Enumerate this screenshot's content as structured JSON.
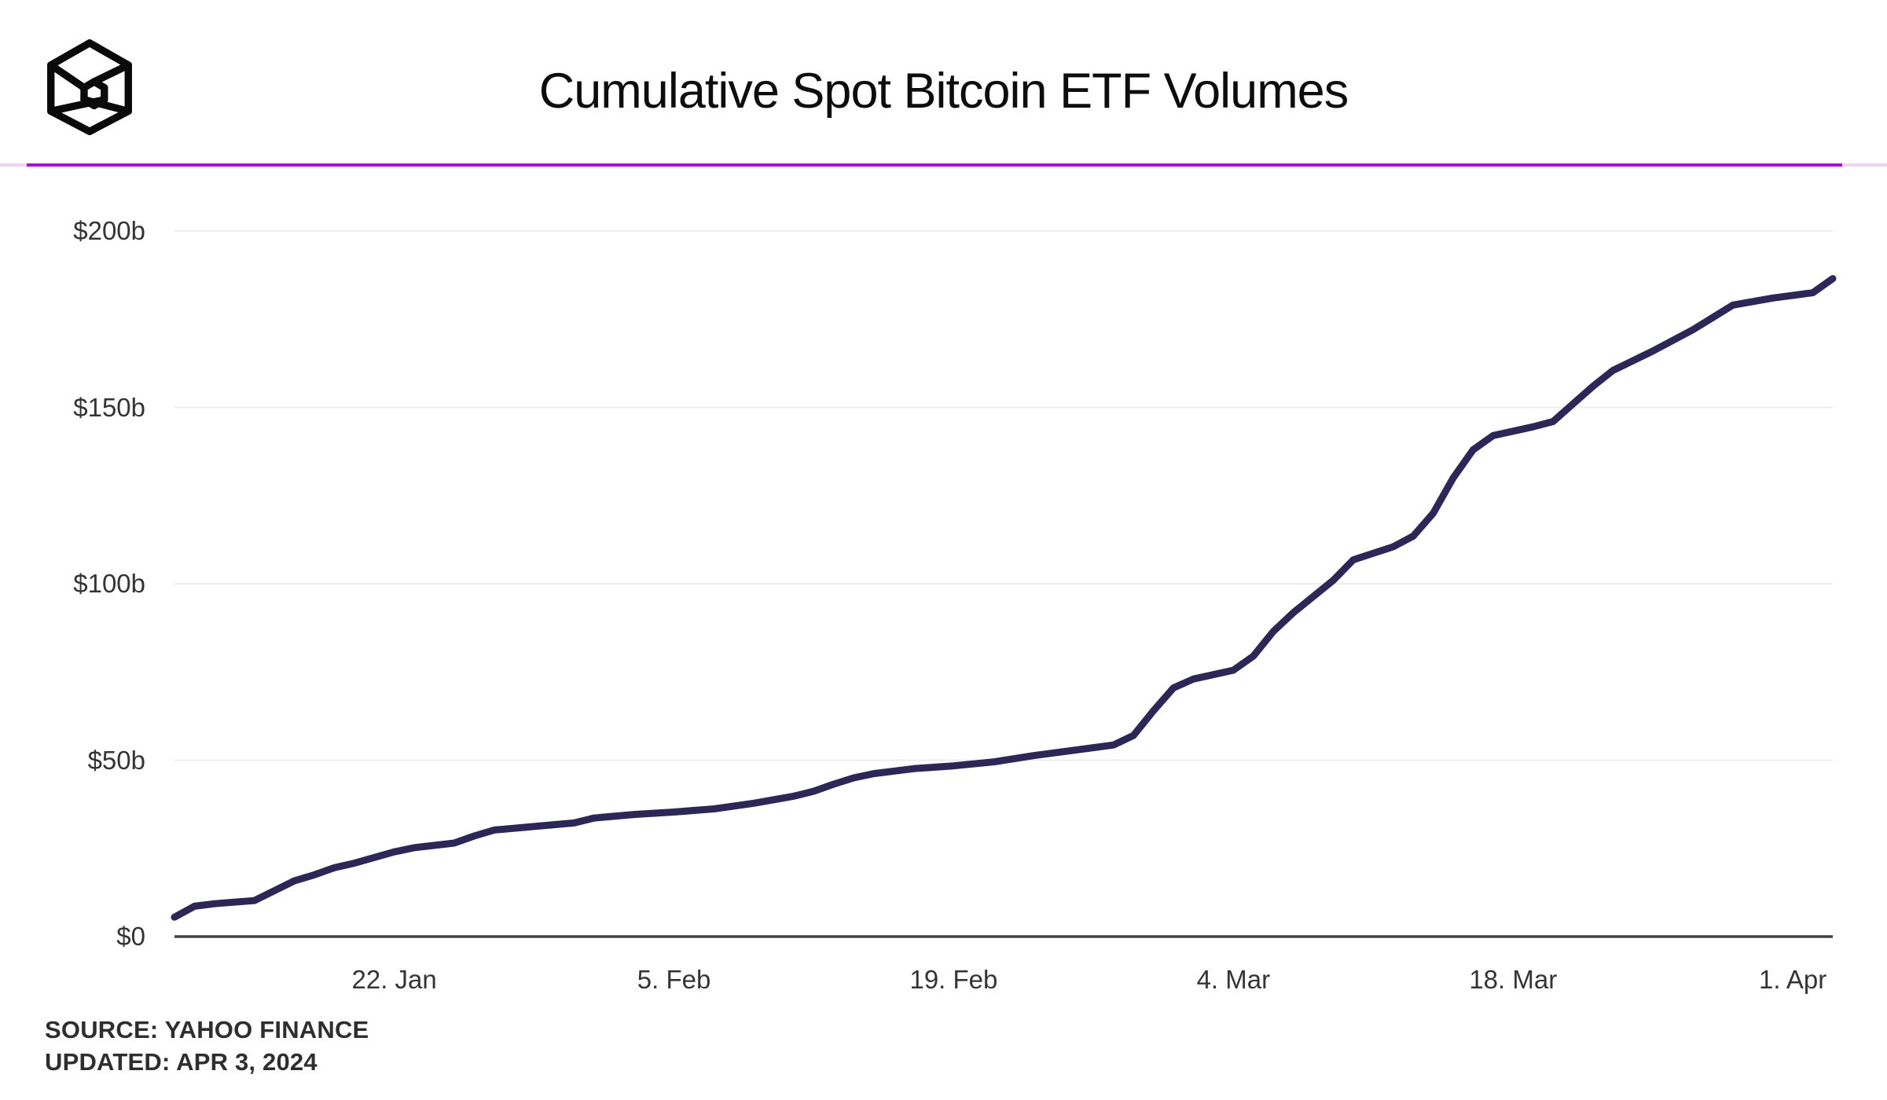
{
  "header": {
    "logo_name": "The Block cube logo",
    "title": "Cumulative Spot Bitcoin ETF Volumes",
    "accent_color": "#ab08e0",
    "accent_light_color": "#eed2f8"
  },
  "footer": {
    "source_line": "SOURCE: YAHOO FINANCE",
    "updated_line": "UPDATED: APR 3, 2024"
  },
  "chart_data": {
    "type": "line",
    "title": "Cumulative Spot Bitcoin ETF Volumes",
    "series_name": "Cumulative spot Bitcoin ETF volume",
    "unit": "billions of USD",
    "line_color": "#2c2757",
    "grid_color": "#ededed",
    "axis_color": "#424242",
    "legend": "none",
    "grid": "horizontal gridlines only",
    "x_axis": {
      "start_date": "Jan 11, 2024",
      "end_date": "Apr 3, 2024",
      "tick_labels": [
        "22. Jan",
        "5. Feb",
        "19. Feb",
        "4. Mar",
        "18. Mar",
        "1. Apr"
      ],
      "tick_days": [
        11,
        25,
        39,
        53,
        67,
        81
      ],
      "total_days": 83
    },
    "y_axis": {
      "tick_labels": [
        "$0",
        "$50b",
        "$100b",
        "$150b",
        "$200b"
      ],
      "tick_values": [
        0,
        50,
        100,
        150,
        200
      ],
      "ylim": [
        0,
        200
      ]
    },
    "points": [
      {
        "day": 0,
        "date": "Jan 11",
        "value": 5.5
      },
      {
        "day": 1,
        "date": "Jan 12",
        "value": 8.6
      },
      {
        "day": 2,
        "date": "Jan 13",
        "value": 9.3
      },
      {
        "day": 4,
        "date": "Jan 15",
        "value": 10.2
      },
      {
        "day": 5,
        "date": "Jan 16",
        "value": 13.0
      },
      {
        "day": 6,
        "date": "Jan 17",
        "value": 15.8
      },
      {
        "day": 7,
        "date": "Jan 18",
        "value": 17.5
      },
      {
        "day": 8,
        "date": "Jan 19",
        "value": 19.5
      },
      {
        "day": 9,
        "date": "Jan 20",
        "value": 20.8
      },
      {
        "day": 11,
        "date": "Jan 22",
        "value": 24.0
      },
      {
        "day": 12,
        "date": "Jan 23",
        "value": 25.2
      },
      {
        "day": 14,
        "date": "Jan 25",
        "value": 26.5
      },
      {
        "day": 15,
        "date": "Jan 26",
        "value": 28.5
      },
      {
        "day": 16,
        "date": "Jan 27",
        "value": 30.2
      },
      {
        "day": 18,
        "date": "Jan 29",
        "value": 31.2
      },
      {
        "day": 20,
        "date": "Jan 31",
        "value": 32.2
      },
      {
        "day": 21,
        "date": "Feb 1",
        "value": 33.6
      },
      {
        "day": 23,
        "date": "Feb 3",
        "value": 34.6
      },
      {
        "day": 25,
        "date": "Feb 5",
        "value": 35.3
      },
      {
        "day": 27,
        "date": "Feb 7",
        "value": 36.2
      },
      {
        "day": 29,
        "date": "Feb 9",
        "value": 37.8
      },
      {
        "day": 31,
        "date": "Feb 11",
        "value": 39.8
      },
      {
        "day": 32,
        "date": "Feb 12",
        "value": 41.2
      },
      {
        "day": 33,
        "date": "Feb 13",
        "value": 43.2
      },
      {
        "day": 34,
        "date": "Feb 14",
        "value": 45.0
      },
      {
        "day": 35,
        "date": "Feb 15",
        "value": 46.2
      },
      {
        "day": 37,
        "date": "Feb 17",
        "value": 47.6
      },
      {
        "day": 39,
        "date": "Feb 19",
        "value": 48.4
      },
      {
        "day": 41,
        "date": "Feb 21",
        "value": 49.5
      },
      {
        "day": 43,
        "date": "Feb 23",
        "value": 51.3
      },
      {
        "day": 45,
        "date": "Feb 25",
        "value": 52.8
      },
      {
        "day": 47,
        "date": "Feb 27",
        "value": 54.3
      },
      {
        "day": 48,
        "date": "Feb 28",
        "value": 57.0
      },
      {
        "day": 49,
        "date": "Feb 29",
        "value": 64.0
      },
      {
        "day": 50,
        "date": "Mar 1",
        "value": 70.5
      },
      {
        "day": 51,
        "date": "Mar 2",
        "value": 73.0
      },
      {
        "day": 53,
        "date": "Mar 4",
        "value": 75.5
      },
      {
        "day": 54,
        "date": "Mar 5",
        "value": 79.5
      },
      {
        "day": 55,
        "date": "Mar 6",
        "value": 86.5
      },
      {
        "day": 56,
        "date": "Mar 7",
        "value": 91.8
      },
      {
        "day": 58,
        "date": "Mar 9",
        "value": 101.0
      },
      {
        "day": 59,
        "date": "Mar 10",
        "value": 106.8
      },
      {
        "day": 61,
        "date": "Mar 12",
        "value": 110.5
      },
      {
        "day": 62,
        "date": "Mar 13",
        "value": 113.5
      },
      {
        "day": 63,
        "date": "Mar 14",
        "value": 120.0
      },
      {
        "day": 64,
        "date": "Mar 15",
        "value": 130.0
      },
      {
        "day": 65,
        "date": "Mar 16",
        "value": 138.0
      },
      {
        "day": 66,
        "date": "Mar 17",
        "value": 142.0
      },
      {
        "day": 68,
        "date": "Mar 19",
        "value": 144.5
      },
      {
        "day": 69,
        "date": "Mar 20",
        "value": 146.0
      },
      {
        "day": 70,
        "date": "Mar 21",
        "value": 151.0
      },
      {
        "day": 71,
        "date": "Mar 22",
        "value": 156.0
      },
      {
        "day": 72,
        "date": "Mar 23",
        "value": 160.5
      },
      {
        "day": 74,
        "date": "Mar 25",
        "value": 166.0
      },
      {
        "day": 75,
        "date": "Mar 26",
        "value": 169.0
      },
      {
        "day": 76,
        "date": "Mar 27",
        "value": 172.0
      },
      {
        "day": 77,
        "date": "Mar 28",
        "value": 175.5
      },
      {
        "day": 78,
        "date": "Mar 29",
        "value": 179.0
      },
      {
        "day": 80,
        "date": "Mar 31",
        "value": 181.0
      },
      {
        "day": 82,
        "date": "Apr 2",
        "value": 182.5
      },
      {
        "day": 83,
        "date": "Apr 3",
        "value": 186.5
      }
    ]
  }
}
